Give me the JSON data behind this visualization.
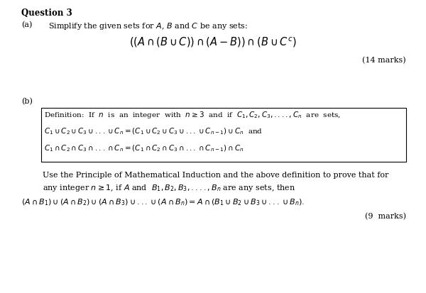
{
  "bg_color": "#ffffff",
  "title_bold": "Question 3",
  "part_a_label": "(a)",
  "part_a_text": "Simplify the given sets for $A$, $B$ and $C$ be any sets:",
  "part_a_formula": "$((A\\cap(B\\cup C))\\cap(A-B))\\cap(B\\cup C^c)$",
  "part_a_marks": "(14 marks)",
  "part_b_label": "(b)",
  "box_line1": "Definition:  If  $n$  is  an  integer  with  $n\\geq 3$  and  if  $C_1,C_2,C_3,....,C_n$  are  sets,",
  "box_line2": "$C_1\\cup C_2\\cup C_3\\cup ...\\cup C_n=(C_1\\cup C_2\\cup C_3\\cup ...\\cup C_{n-1})\\cup C_n$  and",
  "box_line3": "$C_1\\cap C_2\\cap C_3\\cap ...\\cap C_n=(C_1\\cap C_2\\cap C_3\\cap ...\\cap C_{n-1})\\cap C_n$",
  "part_b_prose1": "Use the Principle of Mathematical Induction and the above definition to prove that for",
  "part_b_prose2": "any integer $n\\geq 1$, if $A$ and  $B_1,B_2,B_3,....,B_n$ are any sets, then",
  "part_b_formula": "$(A\\cap B_1)\\cup(A\\cap B_2)\\cup(A\\cap B_3)\\cup ...\\cup(A\\cap B_n)=A\\cap(B_1\\cup B_2\\cup B_3\\cup ...\\cup B_n).$",
  "part_b_marks": "(9  marks)"
}
